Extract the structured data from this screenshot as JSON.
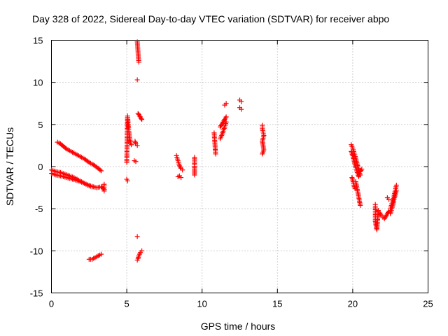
{
  "chart_data": {
    "type": "scatter",
    "title": "Day 328 of 2022, Sidereal Day-to-day VTEC variation (SDTVAR) for receiver abpo",
    "xlabel": "GPS time / hours",
    "ylabel": "SDTVAR / TECUs",
    "xlim": [
      0,
      25
    ],
    "ylim": [
      -15,
      15
    ],
    "xticks": [
      0,
      5,
      10,
      15,
      20,
      25
    ],
    "yticks": [
      -15,
      -10,
      -5,
      0,
      5,
      10,
      15
    ],
    "grid": true,
    "marker": "+",
    "color": "#ff0000",
    "series": [
      {
        "name": "SDTVAR",
        "segments": [
          {
            "x": [
              0.0,
              0.3,
              0.6,
              1.0,
              1.4,
              1.8,
              2.2,
              2.6,
              3.0,
              3.3,
              3.5
            ],
            "y": [
              -0.8,
              -1.0,
              -1.1,
              -1.3,
              -1.5,
              -1.7,
              -2.0,
              -2.3,
              -2.5,
              -2.4,
              -2.7
            ]
          },
          {
            "x": [
              0.0,
              0.3,
              0.6,
              0.9,
              1.2,
              1.5,
              1.8,
              2.1,
              2.4,
              2.7
            ],
            "y": [
              -0.4,
              -0.6,
              -0.7,
              -0.9,
              -1.1,
              -1.3,
              -1.6,
              -1.9,
              -2.2,
              -2.4
            ]
          },
          {
            "x": [
              0.4,
              0.6,
              0.8,
              1.0,
              1.3,
              1.6,
              1.9,
              2.2,
              2.5,
              2.8,
              3.1,
              3.3
            ],
            "y": [
              2.9,
              2.7,
              2.4,
              2.1,
              1.8,
              1.5,
              1.2,
              0.9,
              0.5,
              0.2,
              -0.2,
              -0.5
            ]
          },
          {
            "x": [
              2.5,
              2.7,
              2.9,
              3.1,
              3.3
            ],
            "y": [
              -11.0,
              -11.0,
              -10.8,
              -10.6,
              -10.4
            ]
          },
          {
            "x": [
              3.5,
              3.5,
              3.5
            ],
            "y": [
              -2.1,
              -2.5,
              -2.9
            ]
          },
          {
            "x": [
              5.0,
              5.05,
              5.1,
              5.15,
              5.2,
              5.25,
              5.3
            ],
            "y": [
              0.5,
              6.0,
              5.0,
              4.0,
              3.3,
              2.8,
              2.6
            ]
          },
          {
            "x": [
              5.0,
              5.05
            ],
            "y": [
              -1.5,
              -1.7
            ]
          },
          {
            "x": [
              5.5,
              5.6
            ],
            "y": [
              0.7,
              0.6
            ]
          },
          {
            "x": [
              5.7,
              5.72,
              5.74,
              5.76,
              5.78,
              5.8
            ],
            "y": [
              14.8,
              14.3,
              13.8,
              13.3,
              12.8,
              12.4
            ]
          },
          {
            "x": [
              5.7
            ],
            "y": [
              10.3
            ]
          },
          {
            "x": [
              5.55,
              5.6,
              5.7
            ],
            "y": [
              3.0,
              2.7,
              2.5
            ]
          },
          {
            "x": [
              5.75,
              5.8,
              5.85,
              5.9,
              5.95,
              6.0
            ],
            "y": [
              6.3,
              6.2,
              6.0,
              5.9,
              5.7,
              5.6
            ]
          },
          {
            "x": [
              5.7
            ],
            "y": [
              -8.3
            ]
          },
          {
            "x": [
              5.7,
              5.75,
              5.8,
              5.85,
              5.9,
              6.0
            ],
            "y": [
              -11.1,
              -10.9,
              -10.6,
              -10.4,
              -10.2,
              -10.0
            ]
          },
          {
            "x": [
              8.3,
              8.4,
              8.5,
              8.6,
              8.7
            ],
            "y": [
              1.3,
              0.7,
              0.1,
              -0.2,
              -0.4
            ]
          },
          {
            "x": [
              8.4,
              8.5,
              8.6
            ],
            "y": [
              -1.2,
              -1.1,
              -1.3
            ]
          },
          {
            "x": [
              9.5,
              9.5,
              9.5
            ],
            "y": [
              1.1,
              -0.5,
              -1.0
            ]
          },
          {
            "x": [
              10.8,
              10.9
            ],
            "y": [
              4.0,
              1.5
            ]
          },
          {
            "x": [
              11.2,
              11.3,
              11.4,
              11.5,
              11.6
            ],
            "y": [
              3.3,
              3.7,
              4.2,
              4.7,
              5.3
            ]
          },
          {
            "x": [
              11.2,
              11.3,
              11.4,
              11.5,
              11.6
            ],
            "y": [
              4.7,
              5.0,
              5.3,
              5.6,
              5.9
            ]
          },
          {
            "x": [
              11.5,
              11.6
            ],
            "y": [
              7.3,
              7.5
            ]
          },
          {
            "x": [
              12.5,
              12.6
            ],
            "y": [
              7.9,
              7.7
            ]
          },
          {
            "x": [
              12.5,
              12.6
            ],
            "y": [
              7.0,
              6.8
            ]
          },
          {
            "x": [
              14.0,
              14.0,
              14.1,
              14.0,
              14.1,
              14.0
            ],
            "y": [
              4.9,
              4.5,
              3.7,
              3.0,
              2.0,
              1.5
            ]
          },
          {
            "x": [
              19.9,
              20.0,
              20.1,
              20.2,
              20.3,
              20.4,
              20.5
            ],
            "y": [
              2.6,
              2.2,
              1.6,
              1.0,
              0.3,
              -0.4,
              -1.0
            ]
          },
          {
            "x": [
              19.9,
              20.0,
              20.1,
              20.2,
              20.3,
              20.4,
              20.5,
              20.6
            ],
            "y": [
              1.8,
              1.3,
              0.6,
              -0.1,
              -0.7,
              -1.2,
              -0.6,
              -0.3
            ]
          },
          {
            "x": [
              19.95,
              20.0,
              20.05,
              20.1,
              20.15
            ],
            "y": [
              -1.3,
              -1.6,
              -2.0,
              -2.4,
              -2.6
            ]
          },
          {
            "x": [
              20.2,
              20.3,
              20.4,
              20.5
            ],
            "y": [
              -1.8,
              -2.7,
              -3.6,
              -4.6
            ]
          },
          {
            "x": [
              21.5,
              21.5,
              21.5,
              21.6,
              21.7
            ],
            "y": [
              -4.5,
              -5.5,
              -6.5,
              -7.5,
              -5.2
            ]
          },
          {
            "x": [
              21.8,
              21.9,
              22.0,
              22.1,
              22.2,
              22.3,
              22.4
            ],
            "y": [
              -5.5,
              -5.8,
              -6.0,
              -6.2,
              -5.9,
              -5.6,
              -5.3
            ]
          },
          {
            "x": [
              22.3,
              22.4
            ],
            "y": [
              -3.7,
              -3.9
            ]
          },
          {
            "x": [
              22.5,
              22.6,
              22.7,
              22.8,
              22.9
            ],
            "y": [
              -5.0,
              -4.4,
              -3.8,
              -3.0,
              -2.2
            ]
          },
          {
            "x": [
              22.5,
              22.6,
              22.7,
              22.8,
              22.9
            ],
            "y": [
              -5.6,
              -5.0,
              -4.3,
              -3.5,
              -2.8
            ]
          }
        ]
      }
    ]
  }
}
